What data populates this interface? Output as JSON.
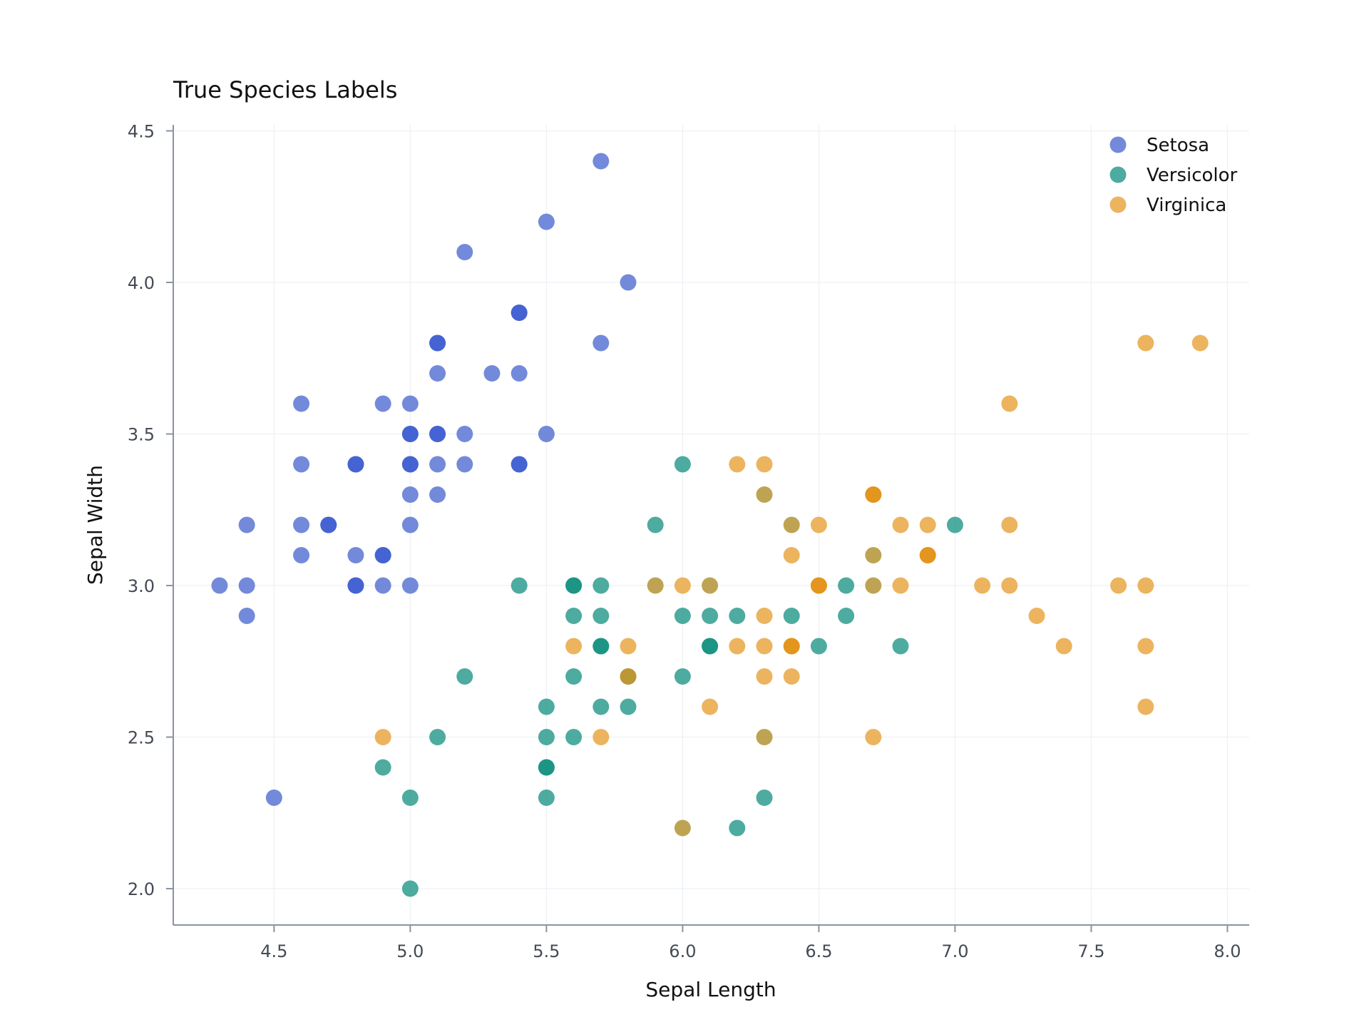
{
  "chart_data": {
    "type": "scatter",
    "title": "True Species Labels",
    "xlabel": "Sepal Length",
    "ylabel": "Sepal Width",
    "xlim": [
      4.13,
      8.08
    ],
    "ylim": [
      1.88,
      4.52
    ],
    "xticks": [
      4.5,
      5.0,
      5.5,
      6.0,
      6.5,
      7.0,
      7.5,
      8.0
    ],
    "xtick_labels": [
      "4.5",
      "5.0",
      "5.5",
      "6.0",
      "6.5",
      "7.0",
      "7.5",
      "8.0"
    ],
    "yticks": [
      2.0,
      2.5,
      3.0,
      3.5,
      4.0,
      4.5
    ],
    "ytick_labels": [
      "2.0",
      "2.5",
      "3.0",
      "3.5",
      "4.0",
      "4.5"
    ],
    "grid": true,
    "legend_position": "top-right",
    "series": [
      {
        "name": "Setosa",
        "color": "#5470d2",
        "x": [
          5.7,
          5.5,
          5.2,
          5.8,
          5.4,
          5.7,
          5.1,
          5.1,
          5.3,
          5.4,
          4.6,
          4.9,
          5.0,
          5.0,
          5.1,
          5.2,
          5.5,
          4.6,
          4.8,
          5.0,
          5.1,
          5.2,
          5.4,
          5.0,
          5.1,
          4.4,
          4.6,
          4.7,
          5.0,
          4.6,
          4.8,
          4.9,
          4.3,
          4.4,
          4.8,
          4.9,
          5.0,
          4.4,
          4.5
        ],
        "y": [
          4.4,
          4.2,
          4.1,
          4.0,
          3.9,
          3.8,
          3.8,
          3.7,
          3.7,
          3.7,
          3.6,
          3.6,
          3.6,
          3.5,
          3.5,
          3.5,
          3.5,
          3.4,
          3.4,
          3.4,
          3.4,
          3.4,
          3.4,
          3.3,
          3.3,
          3.2,
          3.2,
          3.2,
          3.2,
          3.1,
          3.1,
          3.1,
          3.0,
          3.0,
          3.0,
          3.0,
          3.0,
          2.9,
          2.3
        ]
      },
      {
        "name": "Versicolor",
        "color": "#26998a",
        "x": [
          6.0,
          5.9,
          7.0,
          5.4,
          5.6,
          5.7,
          6.6,
          5.6,
          5.7,
          6.0,
          6.1,
          6.2,
          6.4,
          6.6,
          5.7,
          6.1,
          6.5,
          6.8,
          5.2,
          5.6,
          6.0,
          5.5,
          5.7,
          5.8,
          5.1,
          5.5,
          5.6,
          4.9,
          5.5,
          5.0,
          5.5,
          6.3,
          6.2,
          5.0
        ],
        "y": [
          3.4,
          3.2,
          3.2,
          3.0,
          3.0,
          3.0,
          3.0,
          2.9,
          2.9,
          2.9,
          2.9,
          2.9,
          2.9,
          2.9,
          2.8,
          2.8,
          2.8,
          2.8,
          2.7,
          2.7,
          2.7,
          2.6,
          2.6,
          2.6,
          2.5,
          2.5,
          2.5,
          2.4,
          2.4,
          2.3,
          2.3,
          2.3,
          2.2,
          2.0
        ]
      },
      {
        "name": "Virginica",
        "color": "#e8a33b",
        "x": [
          7.7,
          7.9,
          7.2,
          6.2,
          6.3,
          6.7,
          6.5,
          6.8,
          6.9,
          7.2,
          6.4,
          6.9,
          6.0,
          6.5,
          6.8,
          7.1,
          7.2,
          7.6,
          7.7,
          6.3,
          7.3,
          5.6,
          5.8,
          6.2,
          6.3,
          6.4,
          7.4,
          7.7,
          5.8,
          6.3,
          6.4,
          6.1,
          7.7,
          4.9,
          5.7,
          6.7
        ],
        "y": [
          3.8,
          3.8,
          3.6,
          3.4,
          3.4,
          3.3,
          3.2,
          3.2,
          3.2,
          3.2,
          3.1,
          3.1,
          3.0,
          3.0,
          3.0,
          3.0,
          3.0,
          3.0,
          3.0,
          2.9,
          2.9,
          2.8,
          2.8,
          2.8,
          2.8,
          2.8,
          2.8,
          2.8,
          2.7,
          2.7,
          2.7,
          2.6,
          2.6,
          2.5,
          2.5,
          2.5
        ]
      },
      {
        "name": "",
        "color": "#b0902c",
        "x": [
          6.3,
          6.4,
          6.7,
          5.9,
          6.1,
          6.7,
          5.8,
          6.3,
          6.0
        ],
        "y": [
          3.3,
          3.2,
          3.1,
          3.0,
          3.0,
          3.0,
          2.7,
          2.5,
          2.2
        ]
      },
      {
        "name": "",
        "color": "#e08e10",
        "x": [
          6.7,
          6.9,
          6.5,
          6.4
        ],
        "y": [
          3.3,
          3.1,
          3.0,
          2.8
        ]
      },
      {
        "name": "",
        "color": "#3a5ad0",
        "x": [
          5.4,
          5.1,
          5.0,
          5.1,
          4.8,
          5.0,
          5.4,
          4.7,
          4.9,
          4.8
        ],
        "y": [
          3.9,
          3.8,
          3.5,
          3.5,
          3.4,
          3.4,
          3.4,
          3.2,
          3.1,
          3.0
        ]
      },
      {
        "name": "",
        "color": "#12907e",
        "x": [
          5.6,
          5.7,
          6.1,
          5.5
        ],
        "y": [
          3.0,
          2.8,
          2.8,
          2.4
        ]
      }
    ],
    "legend": [
      {
        "label": "Setosa",
        "color": "#5470d2"
      },
      {
        "label": "Versicolor",
        "color": "#26998a"
      },
      {
        "label": "Virginica",
        "color": "#e8a33b"
      }
    ]
  }
}
